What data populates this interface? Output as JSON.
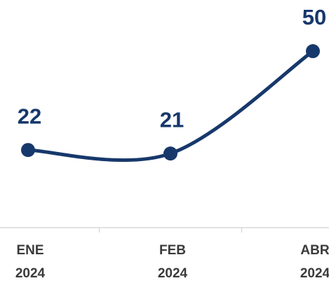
{
  "chart_data": {
    "type": "line",
    "categories": [
      "ENE 2024",
      "FEB 2024",
      "ABR 2024"
    ],
    "values": [
      22,
      21,
      50
    ],
    "color": "#17386b",
    "ylim": [
      0,
      64.5
    ],
    "data_labels": true
  }
}
